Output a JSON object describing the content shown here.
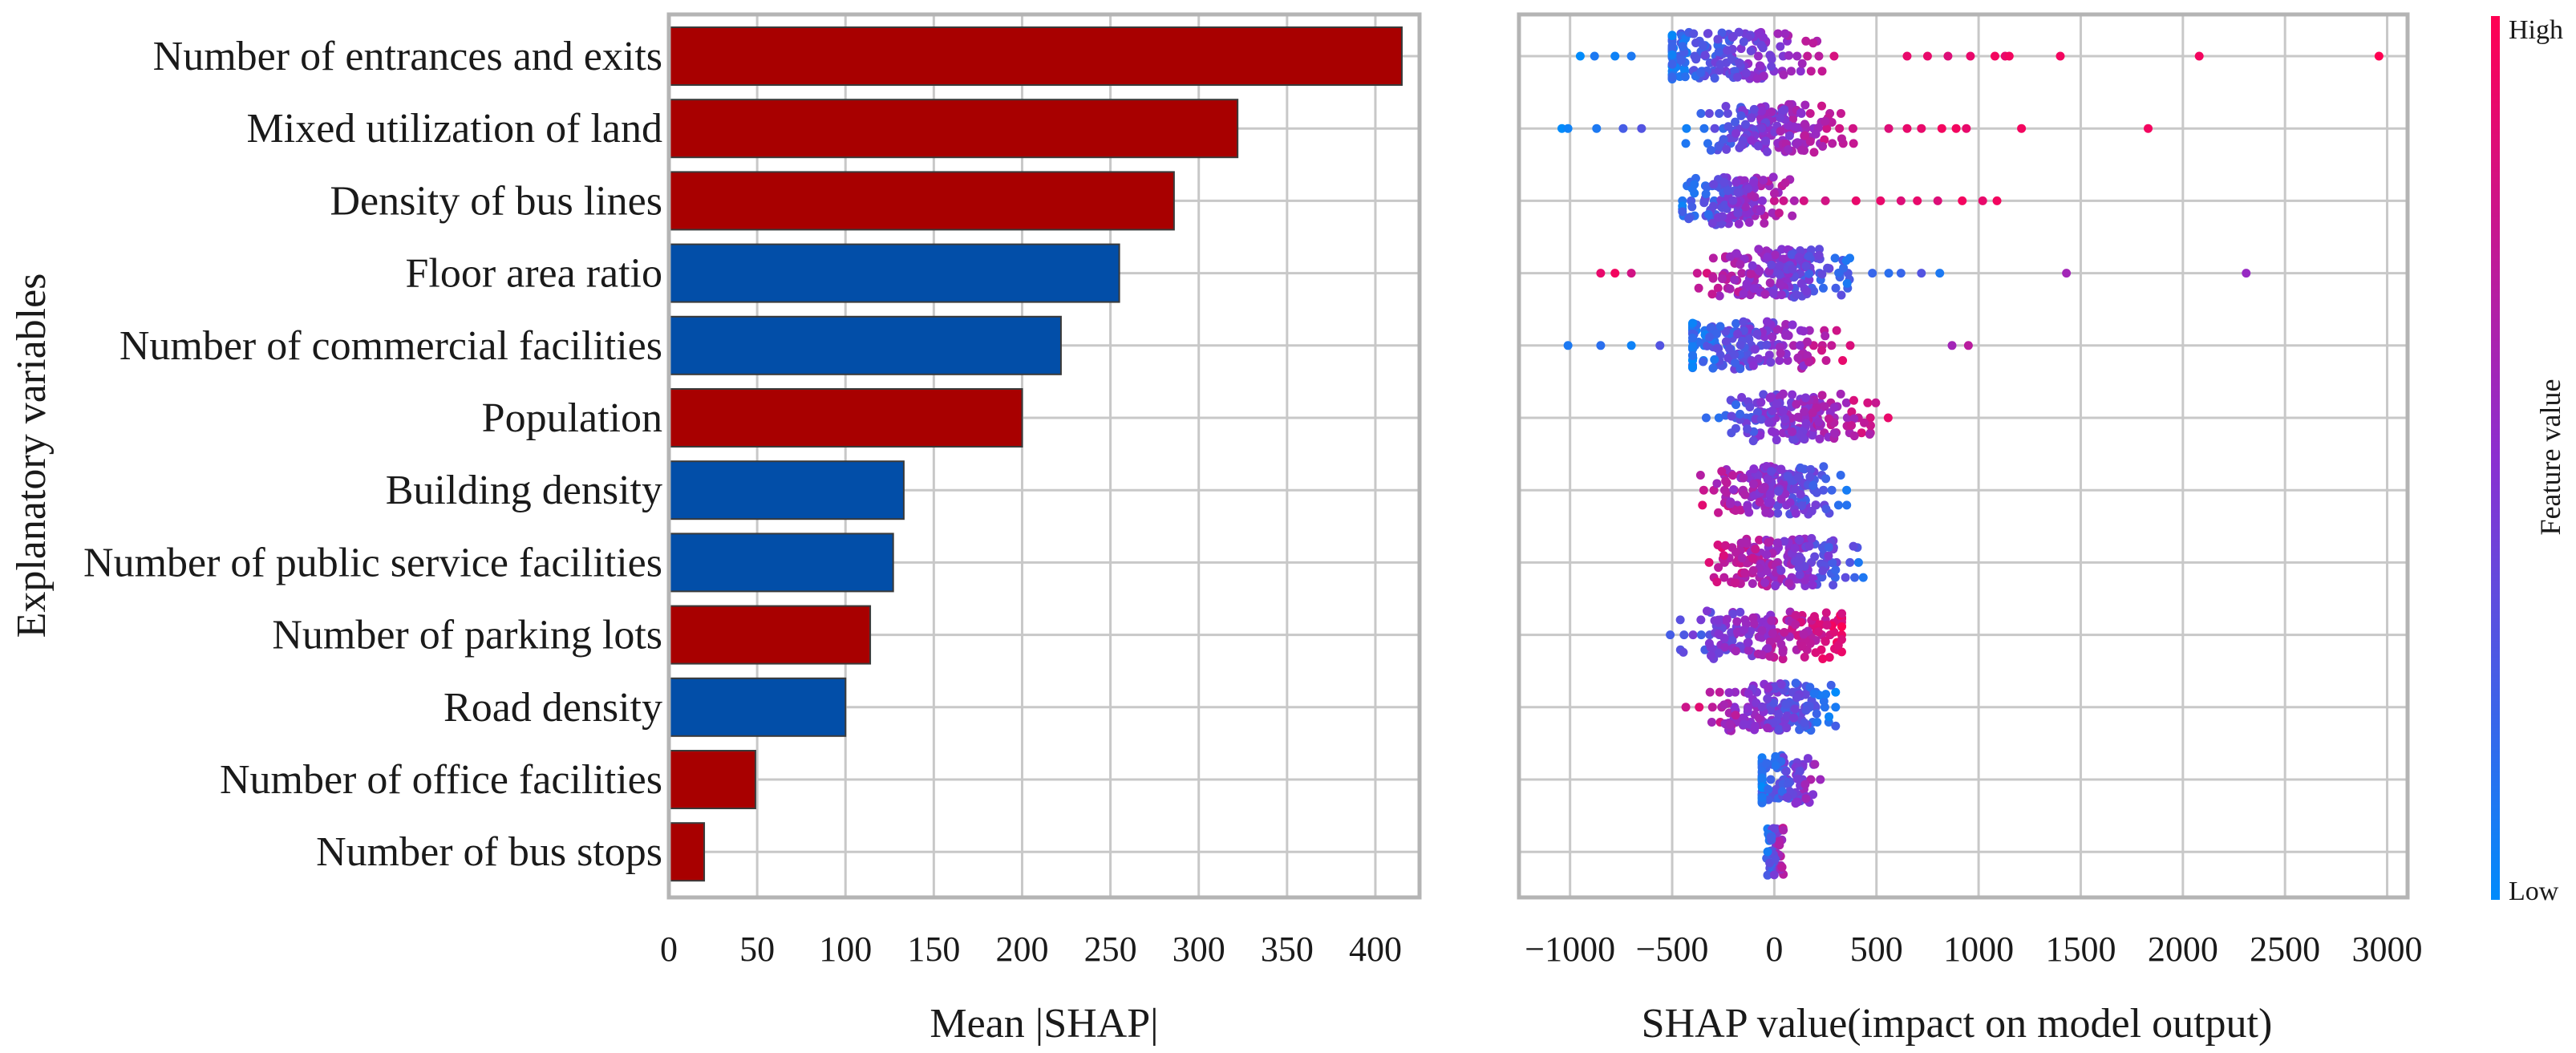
{
  "chart_data": [
    {
      "type": "bar",
      "orientation": "horizontal",
      "xlabel": "Mean |SHAP|",
      "ylabel": "Explanatory variables",
      "xlim": [
        0,
        425
      ],
      "xticks": [
        0,
        50,
        100,
        150,
        200,
        250,
        300,
        350,
        400
      ],
      "grid": true,
      "categories": [
        "Number of entrances and exits",
        "Mixed utilization of land",
        "Density of bus lines",
        "Floor area ratio",
        "Number of commercial facilities",
        "Population",
        "Building density",
        "Number of public service facilities",
        "Number of parking lots",
        "Road density",
        "Number of office facilities",
        "Number of bus stops"
      ],
      "values": [
        415,
        322,
        286,
        255,
        222,
        200,
        133,
        127,
        114,
        100,
        49,
        20
      ],
      "bar_colors": [
        "#a80000",
        "#a80000",
        "#a80000",
        "#024ea8",
        "#024ea8",
        "#a80000",
        "#024ea8",
        "#024ea8",
        "#a80000",
        "#024ea8",
        "#a80000",
        "#a80000"
      ]
    },
    {
      "type": "scatter",
      "subtype": "beeswarm",
      "xlabel": "SHAP value(impact on model output)",
      "xlim": [
        -1250,
        3100
      ],
      "xticks": [
        -1000,
        -500,
        0,
        500,
        1000,
        1500,
        2000,
        2500,
        3000
      ],
      "xtick_labels": [
        "−1000",
        "−500",
        "0",
        "500",
        "1000",
        "1500",
        "2000",
        "2500",
        "3000"
      ],
      "grid": true,
      "rows": [
        {
          "feature": "Number of entrances and exits",
          "core_range": [
            -500,
            450
          ],
          "dense_center": -250,
          "low_side": "left",
          "outliers": [
            [
              -950,
              0
            ],
            [
              -880,
              0.1
            ],
            [
              -780,
              0.05
            ],
            [
              -700,
              0.1
            ],
            [
              650,
              0.9
            ],
            [
              750,
              0.9
            ],
            [
              850,
              0.85
            ],
            [
              960,
              0.9
            ],
            [
              1080,
              0.95
            ],
            [
              1130,
              0.9
            ],
            [
              1150,
              0.95
            ],
            [
              1400,
              0.95
            ],
            [
              2080,
              0.95
            ],
            [
              2960,
              1
            ]
          ]
        },
        {
          "feature": "Mixed utilization of land",
          "core_range": [
            -480,
            500
          ],
          "dense_center": 0,
          "low_side": "left",
          "outliers": [
            [
              -1040,
              0
            ],
            [
              -1010,
              0.05
            ],
            [
              -870,
              0.1
            ],
            [
              -740,
              0.25
            ],
            [
              -650,
              0.3
            ],
            [
              560,
              0.85
            ],
            [
              650,
              0.9
            ],
            [
              720,
              0.9
            ],
            [
              820,
              0.95
            ],
            [
              890,
              0.95
            ],
            [
              940,
              0.9
            ],
            [
              1210,
              0.95
            ],
            [
              1830,
              0.95
            ]
          ]
        },
        {
          "feature": "Density of bus lines",
          "core_range": [
            -450,
            200
          ],
          "dense_center": -200,
          "low_side": "left",
          "outliers": [
            [
              250,
              0.8
            ],
            [
              400,
              0.9
            ],
            [
              520,
              0.9
            ],
            [
              620,
              0.85
            ],
            [
              700,
              0.9
            ],
            [
              800,
              0.85
            ],
            [
              920,
              0.95
            ],
            [
              1020,
              0.9
            ],
            [
              1090,
              0.95
            ]
          ]
        },
        {
          "feature": "Floor area ratio",
          "core_range": [
            -500,
            450
          ],
          "dense_center": 0,
          "low_side": "right",
          "outliers": [
            [
              -850,
              0.9
            ],
            [
              -780,
              0.95
            ],
            [
              -700,
              0.8
            ],
            [
              480,
              0.2
            ],
            [
              560,
              0.15
            ],
            [
              620,
              0.2
            ],
            [
              720,
              0.3
            ],
            [
              810,
              0.1
            ],
            [
              1430,
              0.6
            ],
            [
              2310,
              0.55
            ]
          ]
        },
        {
          "feature": "Number of commercial facilities",
          "core_range": [
            -400,
            450
          ],
          "dense_center": -150,
          "low_side": "left",
          "outliers": [
            [
              -1010,
              0.1
            ],
            [
              -850,
              0.15
            ],
            [
              -700,
              0.05
            ],
            [
              -560,
              0.3
            ],
            [
              870,
              0.6
            ],
            [
              950,
              0.7
            ]
          ]
        },
        {
          "feature": "Population",
          "core_range": [
            -420,
            620
          ],
          "dense_center": 100,
          "low_side": "left",
          "outliers": []
        },
        {
          "feature": "Building density",
          "core_range": [
            -480,
            420
          ],
          "dense_center": 0,
          "low_side": "right",
          "outliers": []
        },
        {
          "feature": "Number of public service facilities",
          "core_range": [
            -350,
            520
          ],
          "dense_center": 50,
          "low_side": "right",
          "outliers": []
        },
        {
          "feature": "Number of parking lots",
          "core_range": [
            -650,
            330
          ],
          "dense_center": 0,
          "low_side": "left",
          "outliers": []
        },
        {
          "feature": "Road density",
          "core_range": [
            -480,
            300
          ],
          "dense_center": 0,
          "low_side": "right",
          "outliers": []
        },
        {
          "feature": "Number of office facilities",
          "core_range": [
            -60,
            370
          ],
          "dense_center": 20,
          "low_side": "left",
          "outliers": []
        },
        {
          "feature": "Number of bus stops",
          "core_range": [
            -40,
            70
          ],
          "dense_center": 0,
          "low_side": "left",
          "outliers": []
        }
      ]
    }
  ],
  "colorbar": {
    "label": "Feature value",
    "high_label": "High",
    "low_label": "Low",
    "high_color": "#ff0052",
    "low_color": "#008bfb"
  }
}
